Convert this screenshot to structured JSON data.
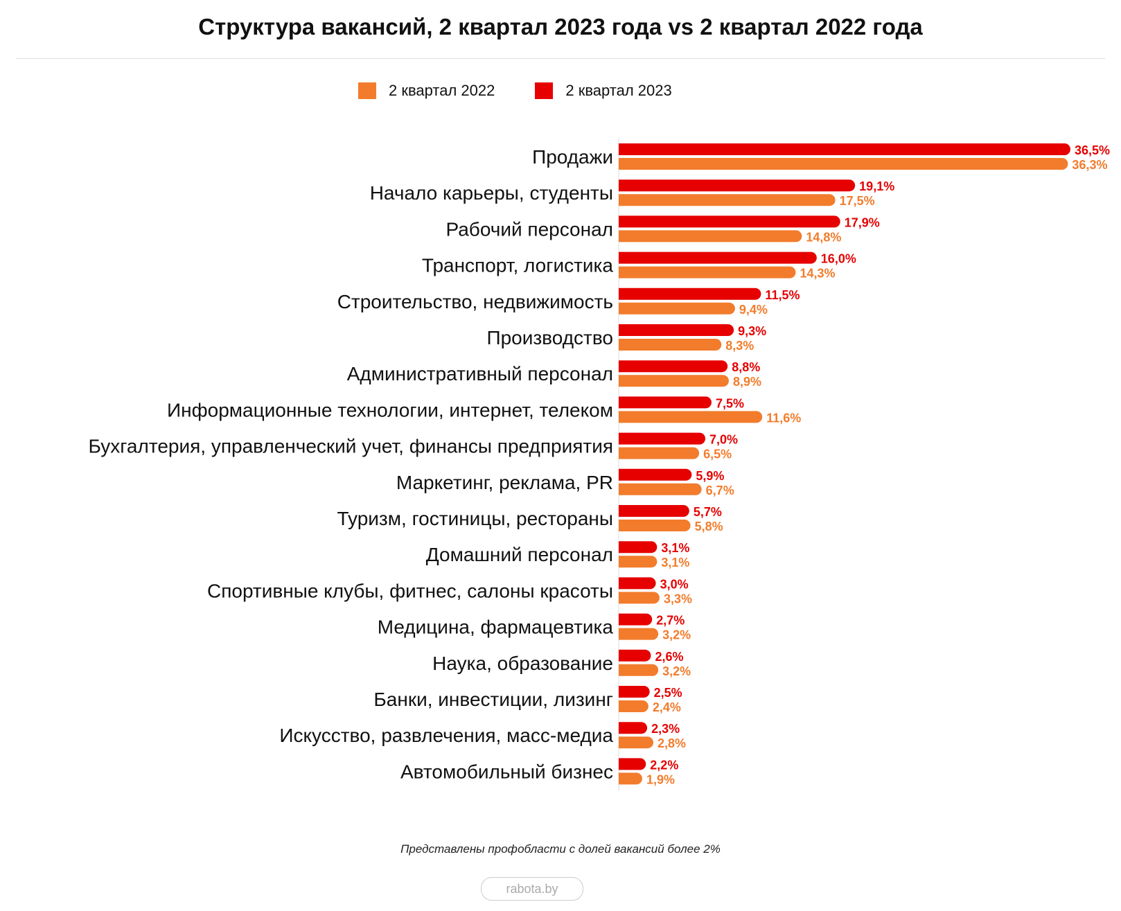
{
  "chart_data": {
    "type": "bar",
    "orientation": "horizontal",
    "title": "Структура вакансий, 2 квартал 2023 года vs 2 квартал 2022 года",
    "categories": [
      "Продажи",
      "Начало карьеры, студенты",
      "Рабочий персонал",
      "Транспорт, логистика",
      "Строительство, недвижимость",
      "Производство",
      "Административный персонал",
      "Информационные технологии, интернет, телеком",
      "Бухгалтерия, управленческий учет, финансы предприятия",
      "Маркетинг, реклама, PR",
      "Туризм, гостиницы, рестораны",
      "Домашний персонал",
      "Спортивные клубы, фитнес, салоны красоты",
      "Медицина, фармацевтика",
      "Наука, образование",
      "Банки, инвестиции, лизинг",
      "Искусство, развлечения, масс-медиа",
      "Автомобильный бизнес"
    ],
    "series": [
      {
        "name": "2 квартал 2023",
        "color": "#e60000",
        "values": [
          36.5,
          19.1,
          17.9,
          16.0,
          11.5,
          9.3,
          8.8,
          7.5,
          7.0,
          5.9,
          5.7,
          3.1,
          3.0,
          2.7,
          2.6,
          2.5,
          2.3,
          2.2
        ],
        "labels": [
          "36,5%",
          "19,1%",
          "17,9%",
          "16,0%",
          "11,5%",
          "9,3%",
          "8,8%",
          "7,5%",
          "7,0%",
          "5,9%",
          "5,7%",
          "3,1%",
          "3,0%",
          "2,7%",
          "2,6%",
          "2,5%",
          "2,3%",
          "2,2%"
        ]
      },
      {
        "name": "2 квартал 2022",
        "color": "#f27c2c",
        "values": [
          36.3,
          17.5,
          14.8,
          14.3,
          9.4,
          8.3,
          8.9,
          11.6,
          6.5,
          6.7,
          5.8,
          3.1,
          3.3,
          3.2,
          3.2,
          2.4,
          2.8,
          1.9
        ],
        "labels": [
          "36,3%",
          "17,5%",
          "14,8%",
          "14,3%",
          "9,4%",
          "8,3%",
          "8,9%",
          "11,6%",
          "6,5%",
          "6,7%",
          "5,8%",
          "3,1%",
          "3,3%",
          "3,2%",
          "3,2%",
          "2,4%",
          "2,8%",
          "1,9%"
        ]
      }
    ],
    "legend_order": [
      "2 квартал 2022",
      "2 квартал 2023"
    ],
    "legend_position": "top",
    "grid": false
  },
  "footnote": "Представлены профобласти с долей вакансий более 2%",
  "brand": "rabota.by"
}
